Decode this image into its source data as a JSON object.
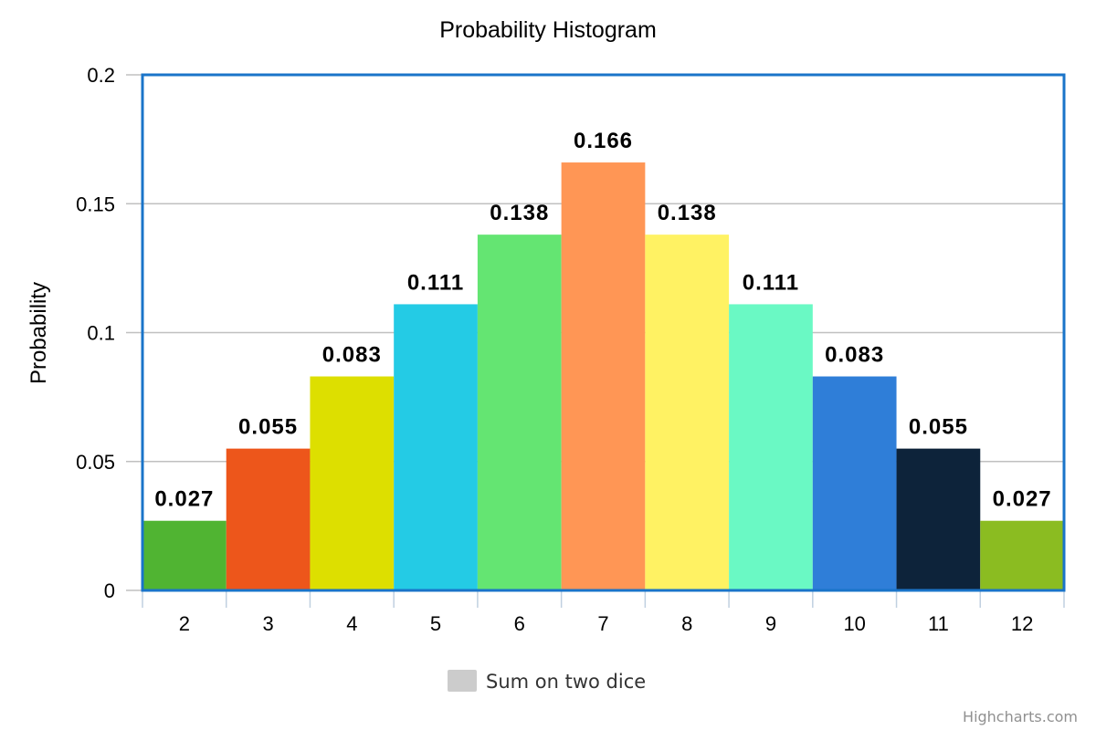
{
  "chart_data": {
    "type": "bar",
    "title": "Probability Histogram",
    "xlabel": "",
    "ylabel": "Probability",
    "categories": [
      "2",
      "3",
      "4",
      "5",
      "6",
      "7",
      "8",
      "9",
      "10",
      "11",
      "12"
    ],
    "series": [
      {
        "name": "Sum on two dice",
        "values": [
          0.027,
          0.055,
          0.083,
          0.111,
          0.138,
          0.166,
          0.138,
          0.111,
          0.083,
          0.055,
          0.027
        ],
        "labels": [
          "0.027",
          "0.055",
          "0.083",
          "0.111",
          "0.138",
          "0.166",
          "0.138",
          "0.111",
          "0.083",
          "0.055",
          "0.027"
        ],
        "colors": [
          "#50B432",
          "#ED561B",
          "#DDDF00",
          "#24CBE5",
          "#64E572",
          "#FF9655",
          "#FFF263",
          "#6AF9C4",
          "#2F7ED8",
          "#0D233A",
          "#8BBC21"
        ]
      }
    ],
    "ylim": [
      0,
      0.2
    ],
    "yticks": [
      "0",
      "0.05",
      "0.1",
      "0.15",
      "0.2"
    ],
    "yticks_values": [
      0,
      0.05,
      0.1,
      0.15,
      0.2
    ],
    "grid": true,
    "legend_position": "bottom-center",
    "legend_symbol_color": "#cccccc",
    "plot_border_color": "#1a74c9",
    "credits": "Highcharts.com"
  }
}
